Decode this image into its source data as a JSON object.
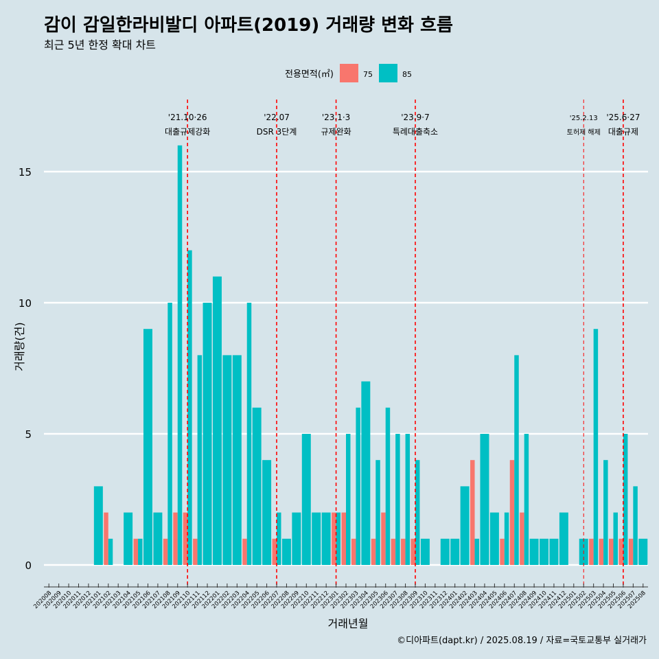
{
  "title": "감이 감일한라비발디 아파트(2019) 거래량 변화 흐름",
  "subtitle": "최근 5년 한정 확대 차트",
  "caption": "©디아파트(dapt.kr) / 2025.08.19 / 자료=국토교통부 실거래가",
  "colors": {
    "s75": "#f8766d",
    "s85": "#00bfc4",
    "background": "#d6e4ea",
    "event_line": "#ff0000"
  },
  "chart_data": {
    "type": "bar",
    "xlabel": "거래년월",
    "ylabel": "거래량(건)",
    "legend_title": "전용면적(㎡)",
    "legend_position": "top",
    "grid": true,
    "ylim": [
      0,
      17
    ],
    "yticks": [
      0,
      5,
      10,
      15
    ],
    "categories": [
      "202008",
      "202009",
      "202010",
      "202011",
      "202012",
      "202101",
      "202102",
      "202103",
      "202104",
      "202105",
      "202106",
      "202107",
      "202108",
      "202109",
      "202110",
      "202111",
      "202112",
      "202201",
      "202202",
      "202203",
      "202204",
      "202205",
      "202206",
      "202207",
      "202208",
      "202209",
      "202210",
      "202211",
      "202212",
      "202301",
      "202302",
      "202303",
      "202304",
      "202305",
      "202306",
      "202307",
      "202308",
      "202309",
      "202310",
      "202311",
      "202312",
      "202401",
      "202402",
      "202403",
      "202404",
      "202405",
      "202406",
      "202407",
      "202408",
      "202409",
      "202410",
      "202411",
      "202412",
      "202501",
      "202502",
      "202503",
      "202504",
      "202505",
      "202506",
      "202507",
      "202508"
    ],
    "series": [
      {
        "name": "75",
        "values": [
          0,
          0,
          0,
          0,
          0,
          0,
          2,
          0,
          0,
          1,
          0,
          0,
          1,
          2,
          2,
          1,
          0,
          0,
          0,
          0,
          1,
          0,
          0,
          1,
          0,
          0,
          0,
          0,
          0,
          2,
          2,
          1,
          0,
          1,
          2,
          1,
          1,
          1,
          0,
          0,
          0,
          0,
          0,
          4,
          0,
          0,
          1,
          4,
          2,
          0,
          0,
          0,
          0,
          0,
          0,
          1,
          1,
          1,
          1,
          1,
          0
        ]
      },
      {
        "name": "85",
        "values": [
          0,
          0,
          0,
          0,
          0,
          3,
          1,
          0,
          2,
          1,
          9,
          2,
          10,
          16,
          12,
          8,
          10,
          11,
          8,
          8,
          10,
          6,
          4,
          2,
          1,
          2,
          5,
          2,
          2,
          2,
          5,
          6,
          7,
          4,
          6,
          5,
          5,
          4,
          1,
          0,
          1,
          1,
          3,
          1,
          5,
          2,
          2,
          8,
          5,
          1,
          1,
          1,
          2,
          0,
          1,
          9,
          4,
          2,
          5,
          3,
          1
        ]
      }
    ],
    "annotations": [
      {
        "category": "202110",
        "date": "'21.10·26",
        "label": "대출규제강화"
      },
      {
        "category": "202207",
        "date": "'22.07",
        "label": "DSR 3단계"
      },
      {
        "category": "202301",
        "date": "'23.1·3",
        "label": "규제완화"
      },
      {
        "category": "202309",
        "date": "'23.9·7",
        "label": "특례대출축소"
      },
      {
        "category": "202502",
        "date": "'25.2.13",
        "label": "토허제 해제"
      },
      {
        "category": "202506",
        "date": "'25.6·27",
        "label": "대출규제"
      }
    ]
  }
}
